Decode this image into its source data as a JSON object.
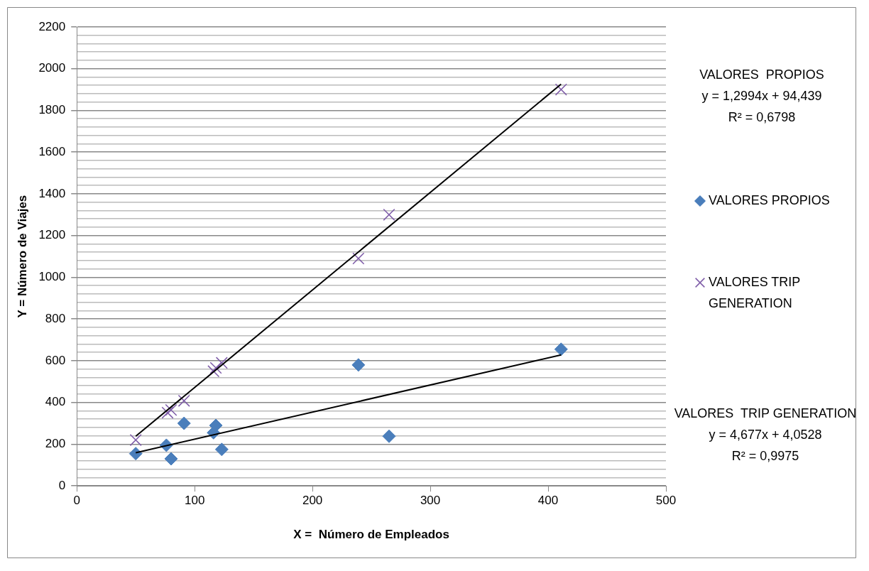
{
  "chart_data": {
    "type": "scatter",
    "xlabel": "X =  Número de Empleados",
    "ylabel": "Y = Número de Viajes",
    "xlim": [
      0,
      500
    ],
    "xticks": [
      0,
      100,
      200,
      300,
      400,
      500
    ],
    "ylim": [
      0,
      2200
    ],
    "yticks": [
      0,
      {
        "value": 40,
        "label": null
      },
      {
        "value": 80,
        "label": null
      },
      {
        "value": 120,
        "label": null
      },
      {
        "value": 160,
        "label": null
      },
      200,
      {
        "value": 240,
        "label": null
      },
      {
        "value": 280,
        "label": null
      },
      {
        "value": 320,
        "label": null
      },
      {
        "value": 360,
        "label": null
      },
      400,
      {
        "value": 440,
        "label": null
      },
      {
        "value": 480,
        "label": null
      },
      {
        "value": 520,
        "label": null
      },
      {
        "value": 560,
        "label": null
      },
      600,
      {
        "value": 640,
        "label": null
      },
      {
        "value": 680,
        "label": null
      },
      {
        "value": 720,
        "label": null
      },
      {
        "value": 760,
        "label": null
      },
      800,
      {
        "value": 840,
        "label": null
      },
      {
        "value": 880,
        "label": null
      },
      {
        "value": 920,
        "label": null
      },
      {
        "value": 960,
        "label": null
      },
      1000,
      {
        "value": 1040,
        "label": null
      },
      {
        "value": 1080,
        "label": null
      },
      {
        "value": 1120,
        "label": null
      },
      {
        "value": 1160,
        "label": null
      },
      1200,
      {
        "value": 1240,
        "label": null
      },
      {
        "value": 1280,
        "label": null
      },
      {
        "value": 1320,
        "label": null
      },
      {
        "value": 1360,
        "label": null
      },
      1400,
      {
        "value": 1440,
        "label": null
      },
      {
        "value": 1480,
        "label": null
      },
      {
        "value": 1520,
        "label": null
      },
      {
        "value": 1560,
        "label": null
      },
      1600,
      {
        "value": 1640,
        "label": null
      },
      {
        "value": 1680,
        "label": null
      },
      {
        "value": 1720,
        "label": null
      },
      {
        "value": 1760,
        "label": null
      },
      1800,
      {
        "value": 1840,
        "label": null
      },
      {
        "value": 1880,
        "label": null
      },
      {
        "value": 1920,
        "label": null
      },
      {
        "value": 1960,
        "label": null
      },
      2000,
      {
        "value": 2040,
        "label": null
      },
      {
        "value": 2080,
        "label": null
      },
      {
        "value": 2120,
        "label": null
      },
      {
        "value": 2160,
        "label": null
      },
      2200
    ],
    "grid": "y",
    "legend": "right",
    "series": [
      {
        "name": "VALORES PROPIOS",
        "color": "#4a7ebb",
        "marker": "diamond",
        "x": [
          50,
          76,
          80,
          91,
          116,
          118,
          123,
          239,
          265,
          411
        ],
        "values": [
          155,
          195,
          130,
          300,
          255,
          290,
          175,
          580,
          238,
          655
        ]
      },
      {
        "name": "VALORES TRIP GENERATION",
        "color": "#7e5ca8",
        "marker": "cross",
        "x": [
          50,
          77,
          80,
          91,
          116,
          118,
          123,
          239,
          265,
          411
        ],
        "values": [
          220,
          351,
          364,
          408,
          550,
          566,
          590,
          1090,
          1300,
          1900
        ]
      },
      {
        "type": "line",
        "color": "#000000",
        "marker": "none",
        "x": [
          50,
          411
        ],
        "values": [
          159,
          628
        ]
      },
      {
        "type": "line",
        "color": "#000000",
        "marker": "none",
        "x": [
          50,
          411
        ],
        "values": [
          238,
          1926
        ]
      }
    ],
    "annotations": [
      "VALORES  PROPIOS\ny = 1,2994x + 94,439\nR² = 0,6798",
      "VALORES  TRIP GENERATION\ny = 4,677x + 4,0528\nR² = 0,9975"
    ]
  }
}
